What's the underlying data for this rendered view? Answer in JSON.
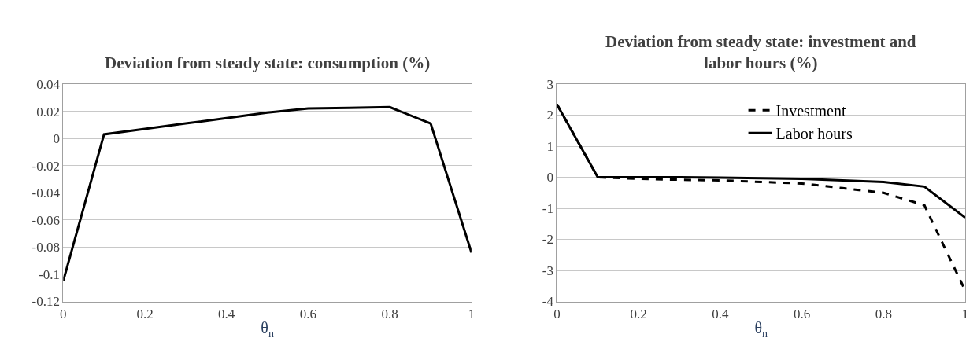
{
  "chart_data": [
    {
      "type": "line",
      "title": "Deviation from steady state: consumption (%)",
      "xlabel": "θ$_{n}$",
      "x": [
        0,
        0.1,
        0.2,
        0.3,
        0.4,
        0.5,
        0.6,
        0.7,
        0.8,
        0.9,
        1
      ],
      "series": [
        {
          "color": "#000000",
          "line_style": "solid",
          "values": [
            -0.105,
            0.003,
            0.007,
            0.011,
            0.015,
            0.019,
            0.022,
            0.0225,
            0.023,
            0.011,
            -0.084
          ]
        }
      ],
      "xlim": [
        0,
        1
      ],
      "xticks": [
        0,
        0.2,
        0.4,
        0.6,
        0.8,
        1
      ],
      "ylim": [
        -0.12,
        0.04
      ],
      "yticks": [
        -0.12,
        -0.1,
        -0.08,
        -0.06,
        -0.04,
        -0.02,
        0,
        0.02,
        0.04
      ],
      "grid": "y",
      "legend": false,
      "marker": "none"
    },
    {
      "type": "line",
      "title": "Deviation from steady state: investment and labor hours (%)",
      "xlabel": "θ$_{n}$",
      "x": [
        0,
        0.1,
        0.2,
        0.3,
        0.4,
        0.5,
        0.6,
        0.7,
        0.8,
        0.9,
        1
      ],
      "series": [
        {
          "name": "Investment",
          "color": "#000000",
          "line_style": "dashed",
          "values": [
            2.35,
            0,
            -0.05,
            -0.08,
            -0.1,
            -0.15,
            -0.2,
            -0.35,
            -0.5,
            -0.9,
            -3.65
          ]
        },
        {
          "name": "Labor hours",
          "color": "#000000",
          "line_style": "solid",
          "values": [
            2.35,
            0,
            0,
            0,
            -0.01,
            -0.03,
            -0.05,
            -0.1,
            -0.15,
            -0.3,
            -1.3
          ]
        }
      ],
      "xlim": [
        0,
        1
      ],
      "xticks": [
        0,
        0.2,
        0.4,
        0.6,
        0.8,
        1
      ],
      "ylim": [
        -4,
        3
      ],
      "yticks": [
        -4,
        -3,
        -2,
        -1,
        0,
        1,
        2,
        3
      ],
      "grid": "y",
      "legend": "top right",
      "marker": "none"
    }
  ]
}
